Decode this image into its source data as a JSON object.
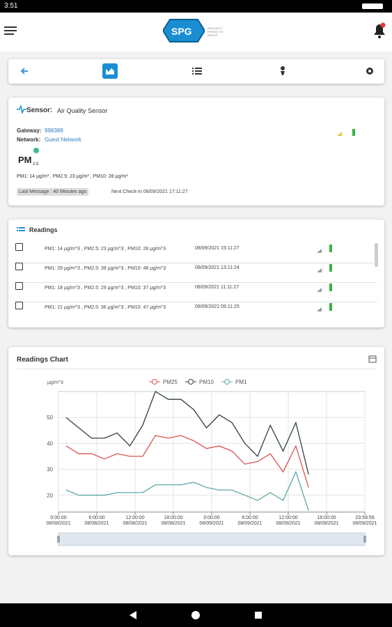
{
  "status_bar": {
    "time": "3:51"
  },
  "header": {
    "logo": "SPG",
    "logo_sub": "SPECIALTY PRODUCTS GROUP"
  },
  "sensor": {
    "label": "Sensor:",
    "name": "Air Quality Sensor",
    "gateway_label": "Gateway:",
    "gateway": "998389",
    "network_label": "Network:",
    "network": "Guest Network",
    "icon_main": "PM",
    "icon_sub": "2.5",
    "latest": "PM1: 14 μg/m³ , PM2.5: 23 μg/m³ , PM10: 28 μg/m³",
    "last_message": "Last Message : 40 Minutes ago",
    "next_checkin": "Next Check-in 08/09/2021 17:11:27"
  },
  "readings": {
    "title": "Readings",
    "rows": [
      [
        "PM1: 14 μg/m^3 , PM2.5: 23 μg/m^3 , PM10: 28 μg/m^3",
        "08/09/2021 15:11:27"
      ],
      [
        "PM1: 29 μg/m^3 , PM2.5: 39 μg/m^3 , PM10: 48 μg/m^3",
        "08/09/2021 13:11:24"
      ],
      [
        "PM1: 18 μg/m^3 , PM2.5: 29 μg/m^3 , PM10: 37 μg/m^3",
        "08/09/2021 11:11:27"
      ],
      [
        "PM1: 21 μg/m^3 , PM2.5: 36 μg/m^3 , PM10: 47 μg/m^3",
        "08/09/2021 09:11:25"
      ]
    ]
  },
  "chart_data": {
    "type": "line",
    "title": "Readings Chart",
    "y_label": "μg/m^3",
    "x": [
      1.19,
      3.19,
      5.19,
      7.19,
      9.19,
      11.19,
      13.19,
      15.19,
      17.19,
      19.19,
      21.19,
      23.19,
      25.19,
      27.19,
      29.19,
      31.19,
      33.19,
      35.19,
      37.19,
      39.19
    ],
    "xlim": [
      0,
      48
    ],
    "xticks": [
      {
        "value": 0,
        "label": "0:00:00\n08/08/2021"
      },
      {
        "value": 6,
        "label": "6:00:00\n08/08/2021"
      },
      {
        "value": 12,
        "label": "12:00:00\n08/08/2021"
      },
      {
        "value": 18,
        "label": "18:00:00\n08/08/2021"
      },
      {
        "value": 24,
        "label": "0:00:00\n08/09/2021"
      },
      {
        "value": 30,
        "label": "6:00:00\n08/09/2021"
      },
      {
        "value": 36,
        "label": "12:00:00\n08/09/2021"
      },
      {
        "value": 42,
        "label": "18:00:00\n08/09/2021"
      },
      {
        "value": 48,
        "label": "23:59:59\n08/09/2021"
      }
    ],
    "ylim": [
      13.5,
      60
    ],
    "yticks": [
      20,
      30,
      40,
      50
    ],
    "grid": true,
    "series": [
      {
        "name": "PM25",
        "color": "#d9534f",
        "values": [
          39,
          36,
          36,
          34,
          36,
          35,
          35,
          43,
          42,
          43,
          41,
          38,
          39,
          37,
          32,
          33,
          36,
          29,
          39,
          23
        ]
      },
      {
        "name": "PM10",
        "color": "#2f3e46",
        "values": [
          50,
          46,
          42,
          42,
          44,
          39,
          47,
          60,
          57,
          57,
          53,
          46,
          51,
          48,
          40,
          35,
          47,
          37,
          48,
          28
        ]
      },
      {
        "name": "PM1",
        "color": "#5aa9a6",
        "values": [
          22,
          20,
          20,
          20,
          21,
          21,
          21,
          24,
          24,
          24,
          25,
          23,
          22,
          22,
          20,
          18,
          21,
          18,
          29,
          14
        ]
      }
    ]
  }
}
